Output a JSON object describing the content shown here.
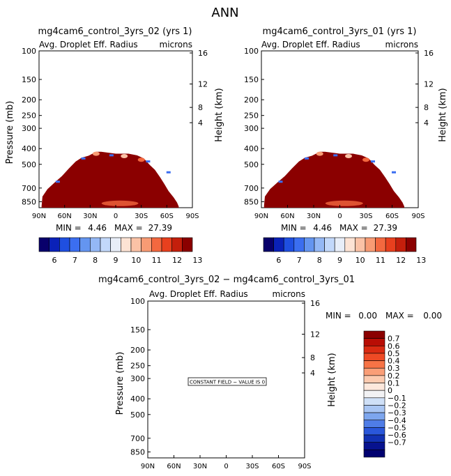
{
  "page_title": "ANN",
  "panels": [
    {
      "title": "mg4cam6_control_3yrs_02 (yrs 1)",
      "variable": "Avg. Droplet Eff. Radius",
      "units": "microns",
      "ylabel_left": "Pressure (mb)",
      "ylabel_right": "Height (km)",
      "pressure_ticks": [
        "100",
        "150",
        "200",
        "250",
        "300",
        "400",
        "500",
        "700",
        "850"
      ],
      "height_ticks": [
        "16",
        "12",
        "8",
        "4"
      ],
      "lat_ticks": [
        "90N",
        "60N",
        "30N",
        "0",
        "30S",
        "60S",
        "90S"
      ],
      "min_label": "MIN =",
      "min_value": "4.46",
      "max_label": "MAX =",
      "max_value": "27.39",
      "colorbar_labels": [
        "6",
        "7",
        "8",
        "9",
        "10",
        "11",
        "12",
        "13"
      ]
    },
    {
      "title": "mg4cam6_control_3yrs_01 (yrs 1)",
      "variable": "Avg. Droplet Eff. Radius",
      "units": "microns",
      "ylabel_left": "Pressure (mb)",
      "ylabel_right": "Height (km)",
      "pressure_ticks": [
        "100",
        "150",
        "200",
        "250",
        "300",
        "400",
        "500",
        "700",
        "850"
      ],
      "height_ticks": [
        "16",
        "12",
        "8",
        "4"
      ],
      "lat_ticks": [
        "90N",
        "60N",
        "30N",
        "0",
        "30S",
        "60S",
        "90S"
      ],
      "min_label": "MIN =",
      "min_value": "4.46",
      "max_label": "MAX =",
      "max_value": "27.39",
      "colorbar_labels": [
        "6",
        "7",
        "8",
        "9",
        "10",
        "11",
        "12",
        "13"
      ]
    },
    {
      "title": "mg4cam6_control_3yrs_02 − mg4cam6_control_3yrs_01",
      "variable": "Avg. Droplet Eff. Radius",
      "units": "microns",
      "ylabel_left": "Pressure (mb)",
      "ylabel_right": "Height (km)",
      "pressure_ticks": [
        "100",
        "150",
        "200",
        "250",
        "300",
        "400",
        "500",
        "700",
        "850"
      ],
      "height_ticks": [
        "16",
        "12",
        "8",
        "4"
      ],
      "lat_ticks": [
        "90N",
        "60N",
        "30N",
        "0",
        "30S",
        "60S",
        "90S"
      ],
      "min_label": "MIN =",
      "min_value": "0.00",
      "max_label": "MAX =",
      "max_value": "0.00",
      "constant_note": "CONSTANT FIELD − VALUE IS 0",
      "colorbar_labels": [
        "0.7",
        "0.6",
        "0.5",
        "0.4",
        "0.3",
        "0.2",
        "0.1",
        "0",
        "−0.1",
        "−0.2",
        "−0.3",
        "−0.4",
        "−0.5",
        "−0.6",
        "−0.7"
      ]
    }
  ],
  "colors": {
    "field_max": "#8b0000",
    "top_colorbar": [
      "#08006b",
      "#0a21b8",
      "#1f4fe0",
      "#3b6ef0",
      "#6495f0",
      "#94b8f5",
      "#c2d8fa",
      "#e8eef8",
      "#fde3d4",
      "#fbc2a6",
      "#f89b74",
      "#f3683f",
      "#e8401e",
      "#c41f0c",
      "#8b0000"
    ],
    "diff_colorbar": [
      "#8b0000",
      "#b80d05",
      "#d92a12",
      "#ee4a25",
      "#f77346",
      "#fa9e77",
      "#fccaaf",
      "#fde8dc",
      "#f2f2f4",
      "#cfe0f7",
      "#a8c5f3",
      "#7da6ee",
      "#4f7de7",
      "#2a57da",
      "#1231b3",
      "#07128e",
      "#000070"
    ]
  },
  "chart_data": [
    {
      "type": "heatmap",
      "title": "mg4cam6_control_3yrs_02 (yrs 1)",
      "x": [
        "90N",
        "60N",
        "30N",
        "0",
        "30S",
        "60S",
        "90S"
      ],
      "y_pressure_mb": [
        100,
        150,
        200,
        250,
        300,
        400,
        500,
        700,
        850
      ],
      "ylim_mb": [
        100,
        925
      ],
      "min": 4.46,
      "max": 27.39,
      "field_outline": [
        {
          "lat": 87,
          "p": 900
        },
        {
          "lat": 86,
          "p": 790
        },
        {
          "lat": 80,
          "p": 710
        },
        {
          "lat": 72,
          "p": 650
        },
        {
          "lat": 63,
          "p": 590
        },
        {
          "lat": 55,
          "p": 530
        },
        {
          "lat": 47,
          "p": 480
        },
        {
          "lat": 40,
          "p": 455
        },
        {
          "lat": 32,
          "p": 443
        },
        {
          "lat": 23,
          "p": 418
        },
        {
          "lat": 17,
          "p": 418
        },
        {
          "lat": 0,
          "p": 430
        },
        {
          "lat": -15,
          "p": 430
        },
        {
          "lat": -25,
          "p": 440
        },
        {
          "lat": -33,
          "p": 460
        },
        {
          "lat": -40,
          "p": 505
        },
        {
          "lat": -46,
          "p": 540
        },
        {
          "lat": -52,
          "p": 600
        },
        {
          "lat": -57,
          "p": 660
        },
        {
          "lat": -62,
          "p": 730
        },
        {
          "lat": -68,
          "p": 800
        },
        {
          "lat": -72,
          "p": 860
        },
        {
          "lat": -74,
          "p": 910
        }
      ],
      "colorbar_labels": [
        6,
        7,
        8,
        9,
        10,
        11,
        12,
        13
      ]
    },
    {
      "type": "heatmap",
      "title": "mg4cam6_control_3yrs_01 (yrs 1)",
      "x": [
        "90N",
        "60N",
        "30N",
        "0",
        "30S",
        "60S",
        "90S"
      ],
      "y_pressure_mb": [
        100,
        150,
        200,
        250,
        300,
        400,
        500,
        700,
        850
      ],
      "ylim_mb": [
        100,
        925
      ],
      "min": 4.46,
      "max": 27.39,
      "colorbar_labels": [
        6,
        7,
        8,
        9,
        10,
        11,
        12,
        13
      ]
    },
    {
      "type": "heatmap",
      "title": "mg4cam6_control_3yrs_02 − mg4cam6_control_3yrs_01",
      "x": [
        "90N",
        "60N",
        "30N",
        "0",
        "30S",
        "60S",
        "90S"
      ],
      "y_pressure_mb": [
        100,
        150,
        200,
        250,
        300,
        400,
        500,
        700,
        850
      ],
      "ylim_mb": [
        100,
        925
      ],
      "min": 0.0,
      "max": 0.0,
      "constant_value": 0,
      "colorbar_labels": [
        0.7,
        0.6,
        0.5,
        0.4,
        0.3,
        0.2,
        0.1,
        0,
        -0.1,
        -0.2,
        -0.3,
        -0.4,
        -0.5,
        -0.6,
        -0.7
      ]
    }
  ]
}
